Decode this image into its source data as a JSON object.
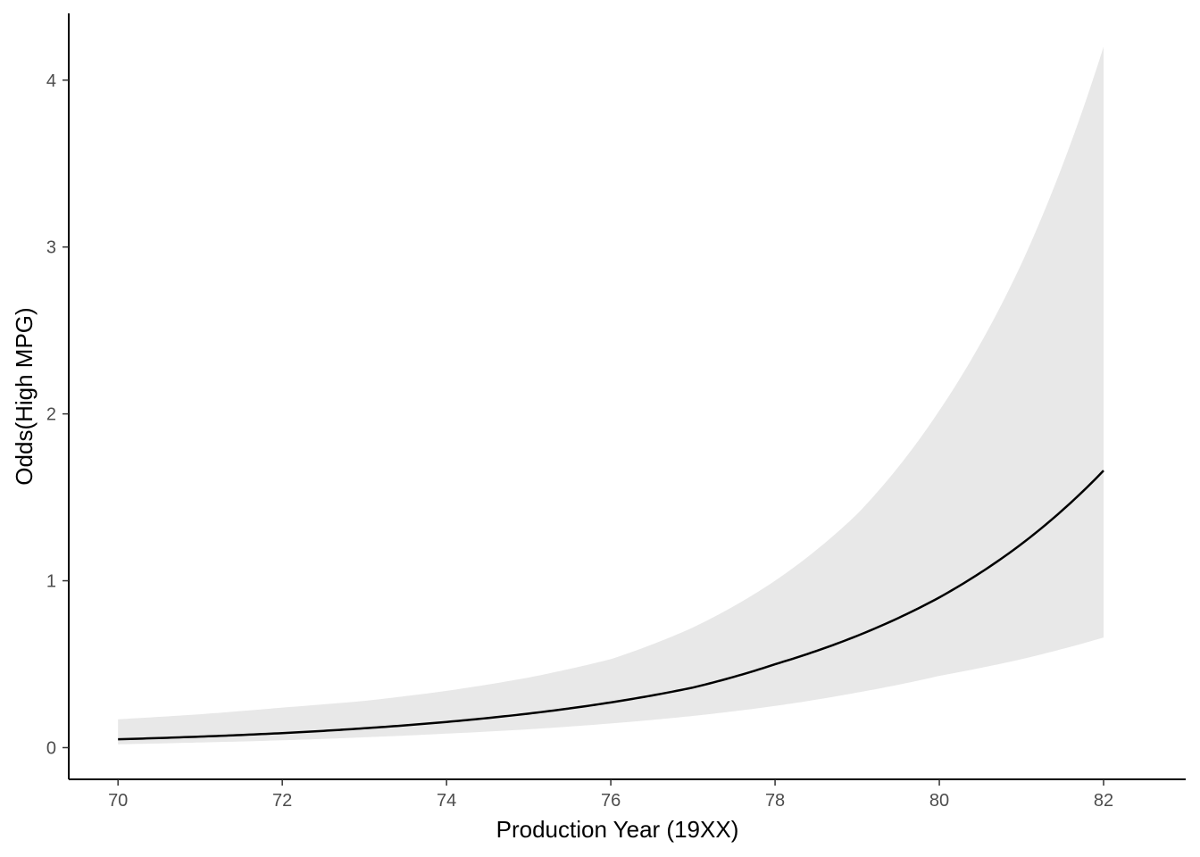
{
  "chart_data": {
    "type": "line",
    "title": "",
    "xlabel": "Production Year (19XX)",
    "ylabel": "Odds(High MPG)",
    "xlim": [
      69.4,
      83.0
    ],
    "ylim": [
      -0.19,
      4.4
    ],
    "x_ticks": [
      "70",
      "72",
      "74",
      "76",
      "78",
      "80",
      "82"
    ],
    "y_ticks": [
      "0",
      "1",
      "2",
      "3",
      "4"
    ],
    "grid": false,
    "x": [
      70,
      71,
      72,
      73,
      74,
      75,
      76,
      77,
      78,
      79,
      80,
      81,
      82
    ],
    "series": [
      {
        "values": [
          0.05,
          0.066,
          0.087,
          0.116,
          0.154,
          0.204,
          0.271,
          0.36,
          0.5,
          0.67,
          0.9,
          1.22,
          1.66
        ]
      }
    ],
    "band": {
      "lower": [
        0.02,
        0.031,
        0.044,
        0.062,
        0.084,
        0.11,
        0.145,
        0.19,
        0.25,
        0.33,
        0.43,
        0.53,
        0.66
      ],
      "upper": [
        0.17,
        0.2,
        0.24,
        0.28,
        0.34,
        0.42,
        0.53,
        0.72,
        1.0,
        1.4,
        2.02,
        2.9,
        4.2
      ]
    },
    "colors": {
      "line": "#000000",
      "band": "#e8e8e8",
      "axis": "#000000"
    }
  }
}
